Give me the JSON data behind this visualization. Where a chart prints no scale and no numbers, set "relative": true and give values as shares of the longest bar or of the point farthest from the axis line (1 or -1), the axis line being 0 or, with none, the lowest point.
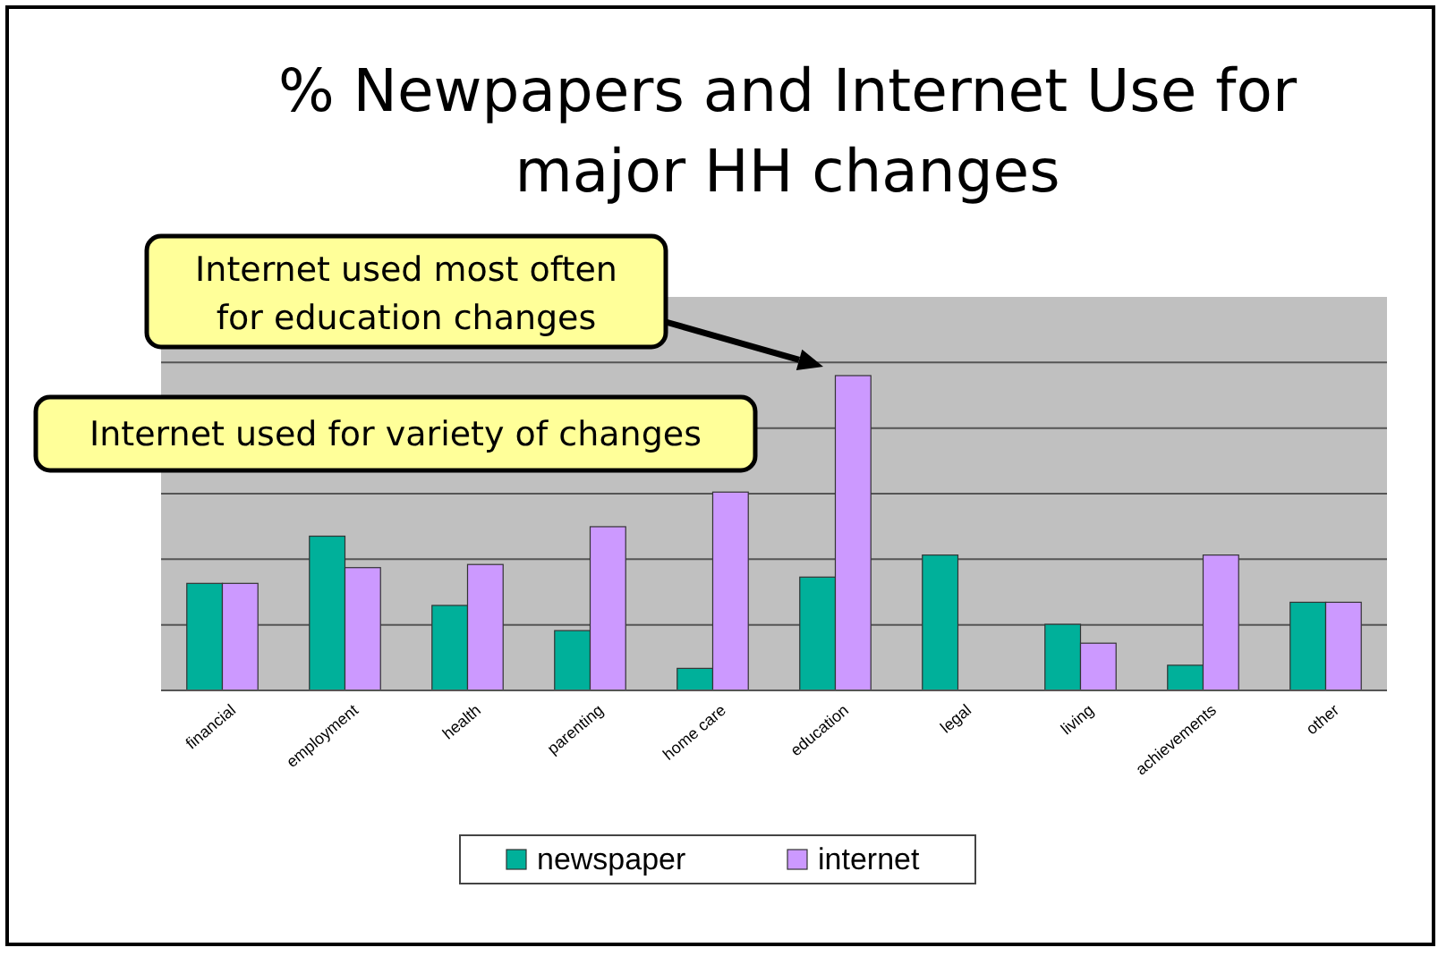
{
  "chart_data": {
    "type": "bar",
    "title": "% Newpapers and Internet Use for major HH changes",
    "relative": true,
    "grid": "y",
    "legend": "bottom",
    "categories": [
      "financial",
      "employment",
      "health",
      "parenting",
      "home care",
      "education",
      "legal",
      "living",
      "achievements",
      "other"
    ],
    "series": [
      {
        "name": "newspaper",
        "color": "#00b09a",
        "values": [
          0.34,
          0.49,
          0.27,
          0.19,
          0.07,
          0.36,
          0.43,
          0.21,
          0.08,
          0.28
        ]
      },
      {
        "name": "internet",
        "color": "#cc99ff",
        "values": [
          0.34,
          0.39,
          0.4,
          0.52,
          0.63,
          1,
          0,
          0.15,
          0.43,
          0.28
        ]
      }
    ],
    "annotations": [
      "Internet used most often for education changes",
      "Internet used for variety of changes"
    ]
  }
}
